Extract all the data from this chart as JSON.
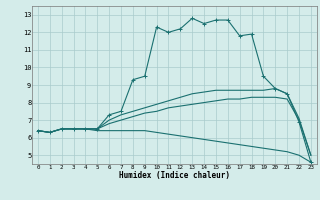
{
  "xlabel": "Humidex (Indice chaleur)",
  "ylabel": "",
  "xlim": [
    -0.5,
    23.5
  ],
  "ylim": [
    4.5,
    13.5
  ],
  "xticks": [
    0,
    1,
    2,
    3,
    4,
    5,
    6,
    7,
    8,
    9,
    10,
    11,
    12,
    13,
    14,
    15,
    16,
    17,
    18,
    19,
    20,
    21,
    22,
    23
  ],
  "yticks": [
    5,
    6,
    7,
    8,
    9,
    10,
    11,
    12,
    13
  ],
  "bg_color": "#d4ecea",
  "grid_color": "#aacccc",
  "line_color": "#1a7070",
  "curves": {
    "upper": {
      "x": [
        0,
        1,
        2,
        3,
        4,
        5,
        6,
        7,
        8,
        9,
        10,
        11,
        12,
        13,
        14,
        15,
        16,
        17,
        18,
        19,
        20,
        21,
        22,
        23
      ],
      "y": [
        6.4,
        6.3,
        6.5,
        6.5,
        6.5,
        6.5,
        7.3,
        7.5,
        9.3,
        9.5,
        12.3,
        12.0,
        12.2,
        12.8,
        12.5,
        12.7,
        12.7,
        11.8,
        11.9,
        9.5,
        8.8,
        8.5,
        6.9,
        4.6
      ]
    },
    "middle_upper": {
      "x": [
        0,
        1,
        2,
        3,
        4,
        5,
        6,
        7,
        8,
        9,
        10,
        11,
        12,
        13,
        14,
        15,
        16,
        17,
        18,
        19,
        20,
        21,
        22,
        23
      ],
      "y": [
        6.4,
        6.3,
        6.5,
        6.5,
        6.5,
        6.5,
        7.0,
        7.3,
        7.5,
        7.7,
        7.9,
        8.1,
        8.3,
        8.5,
        8.6,
        8.7,
        8.7,
        8.7,
        8.7,
        8.7,
        8.8,
        8.5,
        7.1,
        5.0
      ]
    },
    "middle_lower": {
      "x": [
        0,
        1,
        2,
        3,
        4,
        5,
        6,
        7,
        8,
        9,
        10,
        11,
        12,
        13,
        14,
        15,
        16,
        17,
        18,
        19,
        20,
        21,
        22,
        23
      ],
      "y": [
        6.4,
        6.3,
        6.5,
        6.5,
        6.5,
        6.5,
        6.8,
        7.0,
        7.2,
        7.4,
        7.5,
        7.7,
        7.8,
        7.9,
        8.0,
        8.1,
        8.2,
        8.2,
        8.3,
        8.3,
        8.3,
        8.2,
        7.0,
        5.0
      ]
    },
    "lower": {
      "x": [
        0,
        1,
        2,
        3,
        4,
        5,
        6,
        7,
        8,
        9,
        10,
        11,
        12,
        13,
        14,
        15,
        16,
        17,
        18,
        19,
        20,
        21,
        22,
        23
      ],
      "y": [
        6.4,
        6.3,
        6.5,
        6.5,
        6.5,
        6.4,
        6.4,
        6.4,
        6.4,
        6.4,
        6.3,
        6.2,
        6.1,
        6.0,
        5.9,
        5.8,
        5.7,
        5.6,
        5.5,
        5.4,
        5.3,
        5.2,
        5.0,
        4.6
      ]
    }
  },
  "figsize": [
    3.2,
    2.0
  ],
  "dpi": 100
}
